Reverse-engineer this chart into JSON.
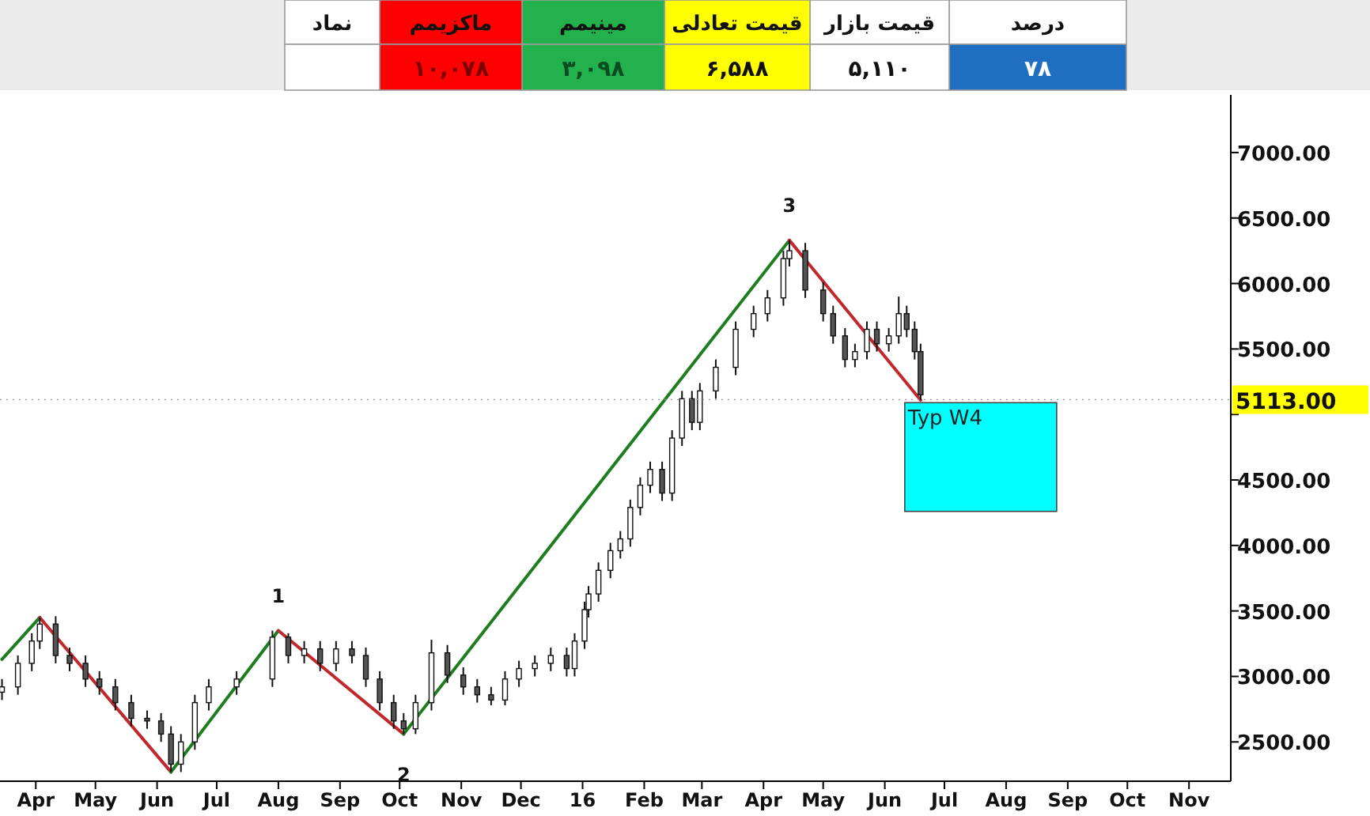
{
  "chart_data": [
    {
      "type": "other",
      "categories": [
        "درصد",
        "قیمت بازار",
        "قیمت تعادلی",
        "مینیمم",
        "ماکزیمم",
        "نماد"
      ],
      "value_labels": [
        "۷۸",
        "۵,۱۱۰",
        "۶,۵۸۸",
        "۳,۰۹۸",
        "۱۰,۰۷۸",
        null
      ],
      "colors": [
        "#ffffff",
        "#ffffff",
        "#ffff00",
        "#22b14c",
        "#ff0000",
        "#ffffff",
        "#1e6fc1",
        "#ffffff",
        "#ffff00",
        "#22b14c",
        "#ff0000",
        "#ffffff"
      ]
    },
    {
      "type": "candlestick",
      "x": [
        "2015-03-15",
        "2015-03-23",
        "2015-03-30",
        "2015-04-03",
        "2015-04-11",
        "2015-04-18",
        "2015-04-26",
        "2015-05-03",
        "2015-05-11",
        "2015-05-19",
        "2015-05-27",
        "2015-06-03",
        "2015-06-08",
        "2015-06-13",
        "2015-06-20",
        "2015-06-27",
        "2015-07-11",
        "2015-07-29",
        "2015-08-06",
        "2015-08-14",
        "2015-08-22",
        "2015-08-30",
        "2015-09-07",
        "2015-09-14",
        "2015-09-21",
        "2015-09-28",
        "2015-10-03",
        "2015-10-09",
        "2015-10-17",
        "2015-10-25",
        "2015-11-02",
        "2015-11-09",
        "2015-11-16",
        "2015-11-23",
        "2015-11-30",
        "2015-12-08",
        "2015-12-16",
        "2015-12-24",
        "2015-12-28",
        "2016-01-02",
        "2016-01-04",
        "2016-01-09",
        "2016-01-15",
        "2016-01-20",
        "2016-01-25",
        "2016-01-30",
        "2016-02-04",
        "2016-02-10",
        "2016-02-15",
        "2016-02-20",
        "2016-02-25",
        "2016-02-29",
        "2016-03-08",
        "2016-03-18",
        "2016-03-27",
        "2016-04-03",
        "2016-04-11",
        "2016-04-14",
        "2016-04-22",
        "2016-05-01",
        "2016-05-06",
        "2016-05-12",
        "2016-05-17",
        "2016-05-23",
        "2016-05-28",
        "2016-06-03",
        "2016-06-08",
        "2016-06-12",
        "2016-06-16",
        "2016-06-19"
      ],
      "ohlc": [
        [
          2880,
          2980,
          2820,
          2920
        ],
        [
          2920,
          3160,
          2860,
          3100
        ],
        [
          3100,
          3330,
          3040,
          3270
        ],
        [
          3270,
          3450,
          3210,
          3400
        ],
        [
          3400,
          3460,
          3100,
          3160
        ],
        [
          3160,
          3220,
          3040,
          3100
        ],
        [
          3100,
          3160,
          2920,
          2980
        ],
        [
          2980,
          3040,
          2860,
          2920
        ],
        [
          2920,
          2980,
          2740,
          2800
        ],
        [
          2800,
          2860,
          2620,
          2680
        ],
        [
          2680,
          2740,
          2600,
          2660
        ],
        [
          2660,
          2720,
          2500,
          2560
        ],
        [
          2560,
          2620,
          2270,
          2330
        ],
        [
          2330,
          2560,
          2270,
          2500
        ],
        [
          2500,
          2860,
          2440,
          2800
        ],
        [
          2800,
          2980,
          2740,
          2920
        ],
        [
          2920,
          3040,
          2860,
          2980
        ],
        [
          2980,
          3350,
          2920,
          3300
        ],
        [
          3300,
          3330,
          3100,
          3160
        ],
        [
          3160,
          3270,
          3100,
          3210
        ],
        [
          3210,
          3270,
          3040,
          3100
        ],
        [
          3100,
          3270,
          3040,
          3210
        ],
        [
          3210,
          3270,
          3100,
          3160
        ],
        [
          3160,
          3220,
          2920,
          2980
        ],
        [
          2980,
          3040,
          2740,
          2800
        ],
        [
          2800,
          2860,
          2600,
          2660
        ],
        [
          2660,
          2720,
          2560,
          2600
        ],
        [
          2600,
          2860,
          2560,
          2800
        ],
        [
          2800,
          3280,
          2740,
          3180
        ],
        [
          3180,
          3240,
          2950,
          3010
        ],
        [
          3010,
          3070,
          2860,
          2920
        ],
        [
          2920,
          2980,
          2800,
          2860
        ],
        [
          2860,
          2920,
          2780,
          2820
        ],
        [
          2820,
          3040,
          2780,
          2980
        ],
        [
          2980,
          3120,
          2920,
          3060
        ],
        [
          3060,
          3160,
          3000,
          3100
        ],
        [
          3100,
          3220,
          3040,
          3160
        ],
        [
          3160,
          3220,
          3000,
          3060
        ],
        [
          3060,
          3330,
          3000,
          3270
        ],
        [
          3270,
          3570,
          3210,
          3510
        ],
        [
          3510,
          3690,
          3450,
          3630
        ],
        [
          3630,
          3870,
          3570,
          3810
        ],
        [
          3810,
          4020,
          3750,
          3960
        ],
        [
          3960,
          4110,
          3900,
          4050
        ],
        [
          4050,
          4350,
          3990,
          4290
        ],
        [
          4290,
          4520,
          4230,
          4460
        ],
        [
          4460,
          4640,
          4400,
          4580
        ],
        [
          4580,
          4640,
          4340,
          4400
        ],
        [
          4400,
          4880,
          4340,
          4820
        ],
        [
          4820,
          5180,
          4760,
          5120
        ],
        [
          5120,
          5180,
          4880,
          4940
        ],
        [
          4940,
          5240,
          4880,
          5180
        ],
        [
          5180,
          5420,
          5120,
          5360
        ],
        [
          5360,
          5710,
          5300,
          5650
        ],
        [
          5650,
          5830,
          5590,
          5770
        ],
        [
          5770,
          5950,
          5710,
          5890
        ],
        [
          5890,
          6250,
          5830,
          6190
        ],
        [
          6190,
          6330,
          6130,
          6250
        ],
        [
          6250,
          6310,
          5890,
          5950
        ],
        [
          5950,
          6010,
          5710,
          5770
        ],
        [
          5770,
          5830,
          5540,
          5600
        ],
        [
          5600,
          5660,
          5360,
          5420
        ],
        [
          5420,
          5540,
          5360,
          5480
        ],
        [
          5480,
          5710,
          5420,
          5650
        ],
        [
          5650,
          5710,
          5480,
          5540
        ],
        [
          5540,
          5660,
          5480,
          5600
        ],
        [
          5600,
          5900,
          5540,
          5770
        ],
        [
          5770,
          5830,
          5590,
          5650
        ],
        [
          5650,
          5710,
          5420,
          5480
        ],
        [
          5480,
          5540,
          5110,
          5150
        ]
      ],
      "series": [
        {
          "type": "line",
          "color": "#1e7d1e",
          "x": [
            "2015-03-15",
            "2015-04-03"
          ],
          "values": [
            3130,
            3450
          ]
        },
        {
          "type": "line",
          "color": "#c0282d",
          "x": [
            "2015-04-03",
            "2015-06-08"
          ],
          "values": [
            3450,
            2270
          ]
        },
        {
          "type": "line",
          "color": "#1e7d1e",
          "x": [
            "2015-06-08",
            "2015-08-01"
          ],
          "values": [
            2270,
            3350
          ]
        },
        {
          "type": "line",
          "color": "#c0282d",
          "x": [
            "2015-08-01",
            "2015-10-03"
          ],
          "values": [
            3350,
            2560
          ]
        },
        {
          "type": "line",
          "color": "#1e7d1e",
          "x": [
            "2015-10-03",
            "2016-04-14"
          ],
          "values": [
            2560,
            6330
          ]
        },
        {
          "type": "line",
          "color": "#c0282d",
          "x": [
            "2016-04-14",
            "2016-06-19"
          ],
          "values": [
            6330,
            5110
          ]
        }
      ],
      "xlim": [
        "2015-03-14",
        "2016-11-22"
      ],
      "ylim": [
        2200,
        7440
      ],
      "xticks": [
        {
          "value": "2015-04-01",
          "label": "Apr"
        },
        {
          "value": "2015-05-01",
          "label": "May"
        },
        {
          "value": "2015-06-01",
          "label": "Jun"
        },
        {
          "value": "2015-07-01",
          "label": "Jul"
        },
        {
          "value": "2015-08-01",
          "label": "Aug"
        },
        {
          "value": "2015-09-01",
          "label": "Sep"
        },
        {
          "value": "2015-10-01",
          "label": "Oct"
        },
        {
          "value": "2015-11-01",
          "label": "Nov"
        },
        {
          "value": "2015-12-01",
          "label": "Dec"
        },
        {
          "value": "2016-01-01",
          "label": "16"
        },
        {
          "value": "2016-02-01",
          "label": "Feb"
        },
        {
          "value": "2016-03-01",
          "label": "Mar"
        },
        {
          "value": "2016-04-01",
          "label": "Apr"
        },
        {
          "value": "2016-05-01",
          "label": "May"
        },
        {
          "value": "2016-06-01",
          "label": "Jun"
        },
        {
          "value": "2016-07-01",
          "label": "Jul"
        },
        {
          "value": "2016-08-01",
          "label": "Aug"
        },
        {
          "value": "2016-09-01",
          "label": "Sep"
        },
        {
          "value": "2016-10-01",
          "label": "Oct"
        },
        {
          "value": "2016-11-01",
          "label": "Nov"
        }
      ],
      "yticks": [
        {
          "value": 2500,
          "label": "2500.00"
        },
        {
          "value": 3000,
          "label": "3000.00"
        },
        {
          "value": 3500,
          "label": "3500.00"
        },
        {
          "value": 4000,
          "label": "4000.00"
        },
        {
          "value": 4500,
          "label": "4500.00"
        },
        {
          "value": 5000,
          "label": null
        },
        {
          "value": 5500,
          "label": "5500.00"
        },
        {
          "value": 6000,
          "label": "6000.00"
        },
        {
          "value": 6500,
          "label": "6500.00"
        },
        {
          "value": 7000,
          "label": "7000.00"
        }
      ],
      "annotations": [
        {
          "text": "1",
          "x": "2015-08-01",
          "y": 3350
        },
        {
          "text": "2",
          "x": "2015-10-03",
          "y": 2560
        },
        {
          "text": "3",
          "x": "2016-04-14",
          "y": 6330
        }
      ],
      "ref_lines": [
        {
          "axis": "y",
          "value": 5113,
          "label": "5113.00"
        }
      ],
      "bands": [
        {
          "axis": "y",
          "from": 4260,
          "to": 5090,
          "label": "Typ W4",
          "color": "#00ffff"
        }
      ]
    }
  ]
}
